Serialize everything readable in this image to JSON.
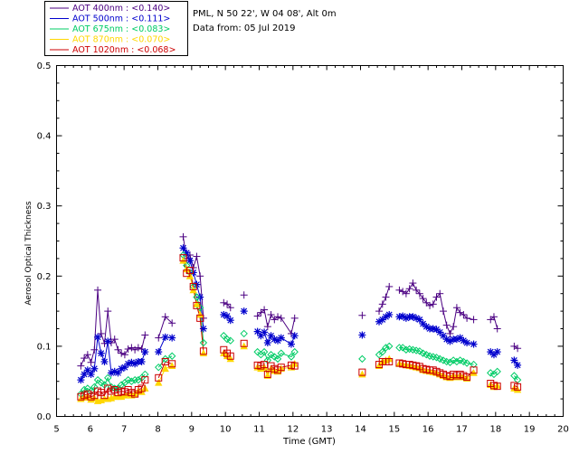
{
  "header": {
    "site": "PML, N 50 22', W 04 08', Alt 0m",
    "data_from": "Data from: 05 Jul 2019"
  },
  "legend": [
    {
      "label": "AOT  400nm : <0.140>",
      "color": "#4b0082"
    },
    {
      "label": "AOT  500nm : <0.111>",
      "color": "#0000cd"
    },
    {
      "label": "AOT  675nm : <0.083>",
      "color": "#00cc66"
    },
    {
      "label": "AOT  870nm : <0.070>",
      "color": "#ffd700"
    },
    {
      "label": "AOT 1020nm : <0.068>",
      "color": "#cc0000"
    }
  ],
  "chart_data": {
    "type": "scatter",
    "title": "",
    "xlabel": "Time (GMT)",
    "ylabel": "Aerosol Optical Thickness",
    "xlim": [
      5,
      20
    ],
    "ylim": [
      0,
      0.5
    ],
    "x_ticks": [
      "5",
      "6",
      "7",
      "8",
      "9",
      "10",
      "11",
      "12",
      "13",
      "14",
      "15",
      "16",
      "17",
      "18",
      "19",
      "20"
    ],
    "y_ticks": [
      "0.0",
      "0.1",
      "0.2",
      "0.3",
      "0.4",
      "0.5"
    ],
    "series": [
      {
        "name": "AOT 400nm",
        "color": "#4b0082",
        "marker": "plus",
        "x": [
          5.72,
          5.82,
          5.92,
          6.02,
          6.12,
          6.22,
          6.32,
          6.42,
          6.52,
          6.62,
          6.72,
          6.82,
          6.92,
          7.02,
          7.12,
          7.22,
          7.32,
          7.42,
          7.52,
          7.62,
          8.02,
          8.22,
          8.42,
          8.75,
          8.85,
          8.95,
          9.05,
          9.15,
          9.25,
          9.35,
          9.95,
          10.05,
          10.15,
          10.55,
          10.95,
          11.05,
          11.15,
          11.25,
          11.35,
          11.45,
          11.55,
          11.65,
          11.95,
          12.05,
          14.05,
          14.55,
          14.65,
          14.75,
          14.85,
          15.15,
          15.25,
          15.35,
          15.45,
          15.55,
          15.65,
          15.75,
          15.85,
          15.95,
          16.05,
          16.15,
          16.25,
          16.35,
          16.45,
          16.55,
          16.65,
          16.75,
          16.85,
          16.95,
          17.05,
          17.15,
          17.35,
          17.85,
          17.95,
          18.05,
          18.55,
          18.65
        ],
        "y": [
          0.072,
          0.083,
          0.088,
          0.077,
          0.095,
          0.18,
          0.118,
          0.104,
          0.15,
          0.105,
          0.11,
          0.095,
          0.09,
          0.088,
          0.096,
          0.098,
          0.095,
          0.098,
          0.096,
          0.116,
          0.112,
          0.142,
          0.133,
          0.256,
          0.225,
          0.23,
          0.212,
          0.228,
          0.2,
          0.14,
          0.162,
          0.16,
          0.155,
          0.173,
          0.143,
          0.148,
          0.152,
          0.128,
          0.145,
          0.138,
          0.142,
          0.14,
          0.118,
          0.14,
          0.144,
          0.15,
          0.16,
          0.17,
          0.185,
          0.18,
          0.178,
          0.175,
          0.182,
          0.19,
          0.18,
          0.175,
          0.168,
          0.162,
          0.158,
          0.16,
          0.17,
          0.175,
          0.15,
          0.13,
          0.118,
          0.128,
          0.155,
          0.148,
          0.145,
          0.14,
          0.138,
          0.138,
          0.142,
          0.125,
          0.1,
          0.097
        ]
      },
      {
        "name": "AOT 500nm",
        "color": "#0000cd",
        "marker": "asterisk",
        "x": [
          5.72,
          5.82,
          5.92,
          6.02,
          6.12,
          6.22,
          6.32,
          6.42,
          6.52,
          6.62,
          6.72,
          6.82,
          6.92,
          7.02,
          7.12,
          7.22,
          7.32,
          7.42,
          7.52,
          7.62,
          8.02,
          8.22,
          8.42,
          8.75,
          8.85,
          8.95,
          9.05,
          9.15,
          9.25,
          9.35,
          9.95,
          10.05,
          10.15,
          10.55,
          10.95,
          11.05,
          11.15,
          11.25,
          11.35,
          11.45,
          11.55,
          11.65,
          11.95,
          12.05,
          14.05,
          14.55,
          14.65,
          14.75,
          14.85,
          15.15,
          15.25,
          15.35,
          15.45,
          15.55,
          15.65,
          15.75,
          15.85,
          15.95,
          16.05,
          16.15,
          16.25,
          16.35,
          16.45,
          16.55,
          16.65,
          16.75,
          16.85,
          16.95,
          17.05,
          17.15,
          17.35,
          17.85,
          17.95,
          18.05,
          18.55,
          18.65
        ],
        "y": [
          0.052,
          0.06,
          0.066,
          0.06,
          0.068,
          0.113,
          0.09,
          0.078,
          0.107,
          0.062,
          0.064,
          0.062,
          0.068,
          0.07,
          0.075,
          0.077,
          0.075,
          0.078,
          0.078,
          0.092,
          0.092,
          0.113,
          0.112,
          0.24,
          0.233,
          0.222,
          0.205,
          0.188,
          0.17,
          0.125,
          0.145,
          0.143,
          0.137,
          0.15,
          0.121,
          0.115,
          0.12,
          0.105,
          0.115,
          0.11,
          0.108,
          0.112,
          0.103,
          0.115,
          0.116,
          0.135,
          0.138,
          0.142,
          0.145,
          0.142,
          0.143,
          0.14,
          0.142,
          0.142,
          0.14,
          0.138,
          0.132,
          0.128,
          0.125,
          0.125,
          0.124,
          0.12,
          0.115,
          0.11,
          0.107,
          0.11,
          0.11,
          0.112,
          0.108,
          0.105,
          0.103,
          0.092,
          0.088,
          0.092,
          0.08,
          0.073
        ]
      },
      {
        "name": "AOT 675nm",
        "color": "#00cc66",
        "marker": "diamond",
        "x": [
          5.72,
          5.82,
          5.92,
          6.02,
          6.12,
          6.22,
          6.32,
          6.42,
          6.52,
          6.62,
          6.72,
          6.82,
          6.92,
          7.02,
          7.12,
          7.22,
          7.32,
          7.42,
          7.52,
          7.62,
          8.02,
          8.22,
          8.42,
          8.75,
          8.85,
          8.95,
          9.05,
          9.15,
          9.25,
          9.35,
          9.95,
          10.05,
          10.15,
          10.55,
          10.95,
          11.05,
          11.15,
          11.25,
          11.35,
          11.45,
          11.55,
          11.65,
          11.95,
          12.05,
          14.05,
          14.55,
          14.65,
          14.75,
          14.85,
          15.15,
          15.25,
          15.35,
          15.45,
          15.55,
          15.65,
          15.75,
          15.85,
          15.95,
          16.05,
          16.15,
          16.25,
          16.35,
          16.45,
          16.55,
          16.65,
          16.75,
          16.85,
          16.95,
          17.05,
          17.15,
          17.35,
          17.85,
          17.95,
          18.05,
          18.55,
          18.65
        ],
        "y": [
          0.032,
          0.038,
          0.04,
          0.036,
          0.042,
          0.052,
          0.048,
          0.045,
          0.055,
          0.042,
          0.04,
          0.04,
          0.045,
          0.048,
          0.052,
          0.05,
          0.052,
          0.052,
          0.055,
          0.06,
          0.07,
          0.082,
          0.086,
          0.23,
          0.215,
          0.205,
          0.185,
          0.17,
          0.155,
          0.105,
          0.115,
          0.11,
          0.108,
          0.118,
          0.092,
          0.088,
          0.092,
          0.08,
          0.088,
          0.085,
          0.082,
          0.09,
          0.085,
          0.092,
          0.082,
          0.088,
          0.092,
          0.098,
          0.1,
          0.098,
          0.098,
          0.095,
          0.096,
          0.095,
          0.094,
          0.093,
          0.09,
          0.088,
          0.086,
          0.085,
          0.084,
          0.082,
          0.08,
          0.078,
          0.077,
          0.08,
          0.078,
          0.08,
          0.078,
          0.076,
          0.074,
          0.062,
          0.06,
          0.064,
          0.058,
          0.052
        ]
      },
      {
        "name": "AOT 870nm",
        "color": "#ffd700",
        "marker": "triangle",
        "x": [
          5.72,
          5.82,
          5.92,
          6.02,
          6.12,
          6.22,
          6.32,
          6.42,
          6.52,
          6.62,
          6.72,
          6.82,
          6.92,
          7.02,
          7.12,
          7.22,
          7.32,
          7.42,
          7.52,
          7.62,
          8.02,
          8.22,
          8.42,
          8.75,
          8.85,
          8.95,
          9.05,
          9.15,
          9.25,
          9.35,
          9.95,
          10.05,
          10.15,
          10.55,
          10.95,
          11.05,
          11.15,
          11.25,
          11.35,
          11.45,
          11.55,
          11.65,
          11.95,
          12.05,
          14.05,
          14.55,
          14.65,
          14.75,
          14.85,
          15.15,
          15.25,
          15.35,
          15.45,
          15.55,
          15.65,
          15.75,
          15.85,
          15.95,
          16.05,
          16.15,
          16.25,
          16.35,
          16.45,
          16.55,
          16.65,
          16.75,
          16.85,
          16.95,
          17.05,
          17.15,
          17.35,
          17.85,
          17.95,
          18.05,
          18.55,
          18.65
        ],
        "y": [
          0.025,
          0.027,
          0.028,
          0.024,
          0.026,
          0.022,
          0.023,
          0.025,
          0.025,
          0.026,
          0.028,
          0.028,
          0.028,
          0.03,
          0.032,
          0.03,
          0.032,
          0.036,
          0.035,
          0.04,
          0.048,
          0.068,
          0.072,
          0.222,
          0.21,
          0.2,
          0.18,
          0.16,
          0.145,
          0.09,
          0.09,
          0.086,
          0.082,
          0.1,
          0.07,
          0.068,
          0.07,
          0.058,
          0.068,
          0.065,
          0.064,
          0.068,
          0.07,
          0.075,
          0.06,
          0.072,
          0.078,
          0.08,
          0.082,
          0.075,
          0.074,
          0.073,
          0.072,
          0.071,
          0.07,
          0.069,
          0.066,
          0.065,
          0.064,
          0.063,
          0.062,
          0.06,
          0.058,
          0.056,
          0.055,
          0.058,
          0.056,
          0.058,
          0.056,
          0.054,
          0.062,
          0.045,
          0.042,
          0.044,
          0.04,
          0.038
        ]
      },
      {
        "name": "AOT 1020nm",
        "color": "#cc0000",
        "marker": "square",
        "x": [
          5.72,
          5.82,
          5.92,
          6.02,
          6.12,
          6.22,
          6.32,
          6.42,
          6.52,
          6.62,
          6.72,
          6.82,
          6.92,
          7.02,
          7.12,
          7.22,
          7.32,
          7.42,
          7.52,
          7.62,
          8.02,
          8.22,
          8.42,
          8.75,
          8.85,
          8.95,
          9.05,
          9.15,
          9.25,
          9.35,
          9.95,
          10.05,
          10.15,
          10.55,
          10.95,
          11.05,
          11.15,
          11.25,
          11.35,
          11.45,
          11.55,
          11.65,
          11.95,
          12.05,
          14.05,
          14.55,
          14.65,
          14.75,
          14.85,
          15.15,
          15.25,
          15.35,
          15.45,
          15.55,
          15.65,
          15.75,
          15.85,
          15.95,
          16.05,
          16.15,
          16.25,
          16.35,
          16.45,
          16.55,
          16.65,
          16.75,
          16.85,
          16.95,
          17.05,
          17.15,
          17.35,
          17.85,
          17.95,
          18.05,
          18.55,
          18.65
        ],
        "y": [
          0.028,
          0.03,
          0.032,
          0.028,
          0.03,
          0.036,
          0.034,
          0.03,
          0.04,
          0.036,
          0.038,
          0.034,
          0.036,
          0.035,
          0.038,
          0.034,
          0.032,
          0.038,
          0.04,
          0.052,
          0.055,
          0.078,
          0.075,
          0.226,
          0.204,
          0.208,
          0.185,
          0.158,
          0.14,
          0.093,
          0.095,
          0.09,
          0.086,
          0.104,
          0.073,
          0.072,
          0.074,
          0.06,
          0.072,
          0.068,
          0.066,
          0.07,
          0.073,
          0.072,
          0.063,
          0.074,
          0.078,
          0.078,
          0.078,
          0.076,
          0.075,
          0.074,
          0.074,
          0.073,
          0.072,
          0.071,
          0.068,
          0.067,
          0.066,
          0.066,
          0.064,
          0.062,
          0.06,
          0.058,
          0.057,
          0.06,
          0.058,
          0.06,
          0.058,
          0.056,
          0.066,
          0.047,
          0.044,
          0.043,
          0.044,
          0.042
        ]
      }
    ]
  }
}
